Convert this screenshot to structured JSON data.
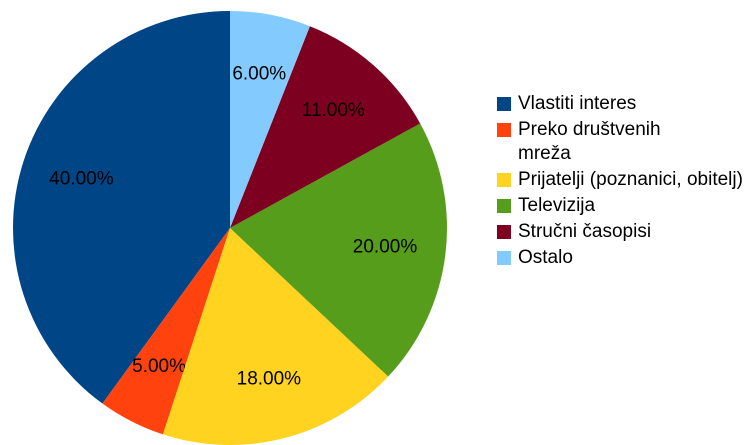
{
  "chart_data": {
    "type": "pie",
    "categories": [
      "Vlastiti interes",
      "Preko društvenih mreža",
      "Prijatelji (poznanici, obitelj)",
      "Televizija",
      "Stručni časopisi",
      "Ostalo"
    ],
    "values": [
      40,
      5,
      18,
      20,
      11,
      6
    ],
    "value_labels": [
      "40.00%",
      "5.00%",
      "18.00%",
      "20.00%",
      "11.00%",
      "6.00%"
    ],
    "colors": [
      "#004586",
      "#ff420e",
      "#ffd320",
      "#579d1c",
      "#7e0021",
      "#83caff"
    ],
    "legend": "right"
  }
}
